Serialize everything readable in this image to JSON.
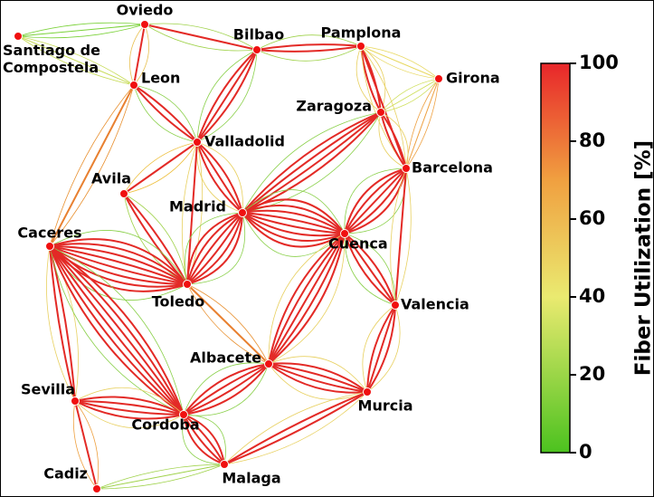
{
  "nodes": [
    {
      "label": "Oviedo"
    },
    {
      "label": "Santiago de\nCompostela"
    },
    {
      "label": "Bilbao"
    },
    {
      "label": "Pamplona"
    },
    {
      "label": "Girona"
    },
    {
      "label": "Leon"
    },
    {
      "label": "Zaragoza"
    },
    {
      "label": "Valladolid"
    },
    {
      "label": "Barcelona"
    },
    {
      "label": "Avila"
    },
    {
      "label": "Madrid"
    },
    {
      "label": "Cuenca"
    },
    {
      "label": "Caceres"
    },
    {
      "label": "Toledo"
    },
    {
      "label": "Valencia"
    },
    {
      "label": "Albacete"
    },
    {
      "label": "Sevilla"
    },
    {
      "label": "Murcia"
    },
    {
      "label": "Cordoba"
    },
    {
      "label": "Cadiz"
    },
    {
      "label": "Malaga"
    }
  ],
  "colorbar": {
    "title": "Fiber Utilization [%]",
    "range": [
      0,
      100
    ],
    "ticks": [
      0,
      20,
      40,
      60,
      80,
      100
    ]
  }
}
